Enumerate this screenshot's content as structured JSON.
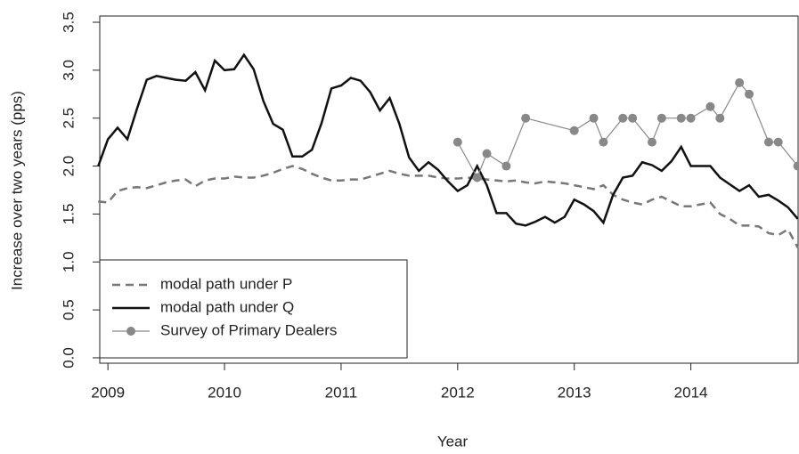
{
  "chart_data": {
    "type": "line",
    "x_label": "Year",
    "y_label": "Increase over two years (pps)",
    "xlim": [
      2008.93,
      2014.92
    ],
    "ylim": [
      -0.056,
      3.565
    ],
    "xticks": [
      2009,
      2010,
      2011,
      2012,
      2013,
      2014
    ],
    "yticks": [
      {
        "value": 0,
        "label": "0.0"
      },
      0.5,
      {
        "value": 1,
        "label": "1.0"
      },
      1.5,
      {
        "value": 2,
        "label": "2.0"
      },
      2.5,
      {
        "value": 3,
        "label": "3.0"
      },
      3.5
    ],
    "legend": "bottom-left",
    "x": [
      2008.917,
      2009.0,
      2009.083,
      2009.167,
      2009.25,
      2009.333,
      2009.417,
      2009.5,
      2009.583,
      2009.667,
      2009.75,
      2009.833,
      2009.917,
      2010.0,
      2010.083,
      2010.167,
      2010.25,
      2010.333,
      2010.417,
      2010.5,
      2010.583,
      2010.667,
      2010.75,
      2010.833,
      2010.917,
      2011.0,
      2011.083,
      2011.167,
      2011.25,
      2011.333,
      2011.417,
      2011.5,
      2011.583,
      2011.667,
      2011.75,
      2011.833,
      2011.917,
      2012.0,
      2012.083,
      2012.167,
      2012.25,
      2012.333,
      2012.417,
      2012.5,
      2012.583,
      2012.667,
      2012.75,
      2012.833,
      2012.917,
      2013.0,
      2013.083,
      2013.167,
      2013.25,
      2013.333,
      2013.417,
      2013.5,
      2013.583,
      2013.667,
      2013.75,
      2013.833,
      2013.917,
      2014.0,
      2014.083,
      2014.167,
      2014.25,
      2014.333,
      2014.417,
      2014.5,
      2014.583,
      2014.667,
      2014.75,
      2014.833,
      2014.917
    ],
    "series": [
      {
        "name": "modal path under P",
        "color": "#777777",
        "dash": true,
        "values": [
          1.63,
          1.62,
          1.74,
          1.77,
          1.78,
          1.77,
          1.8,
          1.83,
          1.85,
          1.86,
          1.79,
          1.85,
          1.87,
          1.87,
          1.89,
          1.88,
          1.88,
          1.9,
          1.93,
          1.97,
          2.0,
          1.97,
          1.92,
          1.88,
          1.85,
          1.85,
          1.86,
          1.86,
          1.89,
          1.92,
          1.95,
          1.92,
          1.9,
          1.9,
          1.9,
          1.88,
          1.87,
          1.87,
          1.88,
          1.87,
          1.86,
          1.85,
          1.84,
          1.85,
          1.83,
          1.82,
          1.84,
          1.83,
          1.82,
          1.8,
          1.78,
          1.76,
          1.8,
          1.7,
          1.65,
          1.62,
          1.6,
          1.65,
          1.68,
          1.63,
          1.58,
          1.58,
          1.6,
          1.62,
          1.5,
          1.45,
          1.38,
          1.38,
          1.37,
          1.3,
          1.28,
          1.34,
          1.15
        ]
      },
      {
        "name": "modal path under Q",
        "color": "#111111",
        "values": [
          2.0,
          2.28,
          2.4,
          2.28,
          2.6,
          2.9,
          2.94,
          2.92,
          2.9,
          2.89,
          2.98,
          2.79,
          3.1,
          3.0,
          3.01,
          3.16,
          3.01,
          2.68,
          2.44,
          2.38,
          2.1,
          2.1,
          2.17,
          2.45,
          2.81,
          2.84,
          2.92,
          2.89,
          2.77,
          2.58,
          2.71,
          2.44,
          2.09,
          1.95,
          2.04,
          1.96,
          1.84,
          1.74,
          1.8,
          2.0,
          1.8,
          1.51,
          1.51,
          1.4,
          1.38,
          1.42,
          1.47,
          1.41,
          1.47,
          1.65,
          1.6,
          1.53,
          1.41,
          1.7,
          1.88,
          1.9,
          2.04,
          2.01,
          1.95,
          2.05,
          2.2,
          2.0,
          2.0,
          2.0,
          1.88,
          1.81,
          1.74,
          1.8,
          1.68,
          1.7,
          1.64,
          1.57,
          1.45
        ]
      },
      {
        "name": "Survey of Primary Dealers",
        "color": "#888888",
        "markers": true,
        "x": [
          2012.0,
          2012.167,
          2012.25,
          2012.417,
          2012.583,
          2013.0,
          2013.167,
          2013.25,
          2013.417,
          2013.5,
          2013.667,
          2013.75,
          2013.917,
          2014.0,
          2014.167,
          2014.25,
          2014.417,
          2014.5,
          2014.667,
          2014.75,
          2014.917
        ],
        "values": [
          2.25,
          1.88,
          2.13,
          2.0,
          2.5,
          2.37,
          2.5,
          2.25,
          2.5,
          2.5,
          2.25,
          2.5,
          2.5,
          2.5,
          2.62,
          2.5,
          2.87,
          2.75,
          2.25,
          2.25,
          2.0
        ]
      }
    ]
  }
}
